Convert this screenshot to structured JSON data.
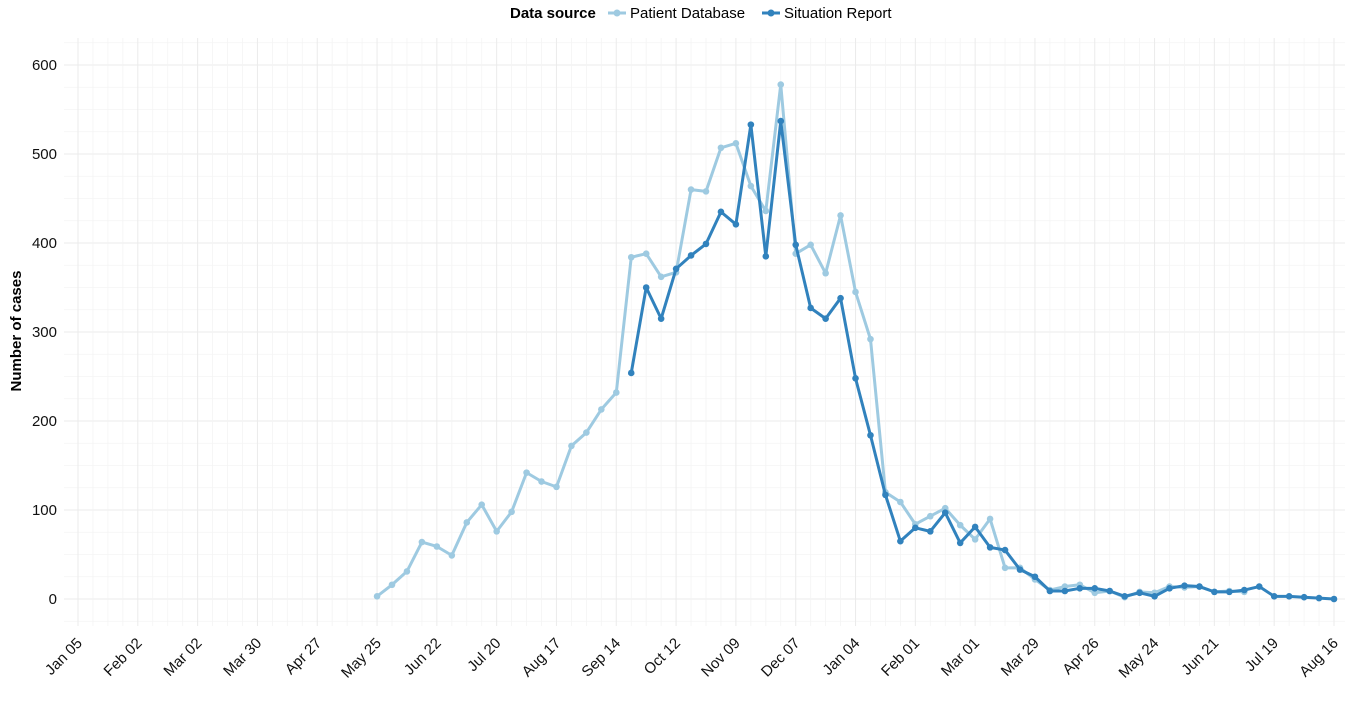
{
  "chart_data": {
    "type": "line",
    "title": "",
    "xlabel": "",
    "ylabel": "Number of cases",
    "legend": {
      "title": "Data source",
      "position": "top-center"
    },
    "grid": true,
    "ylim": [
      -30,
      630
    ],
    "yticks": [
      0,
      100,
      200,
      300,
      400,
      500,
      600
    ],
    "xlim": [
      "2014-01-05",
      "2015-08-16"
    ],
    "xticks": [
      {
        "date": "2014-01-05",
        "label": "Jan 05"
      },
      {
        "date": "2014-02-02",
        "label": "Feb 02"
      },
      {
        "date": "2014-03-02",
        "label": "Mar 02"
      },
      {
        "date": "2014-03-30",
        "label": "Mar 30"
      },
      {
        "date": "2014-04-27",
        "label": "Apr 27"
      },
      {
        "date": "2014-05-25",
        "label": "May 25"
      },
      {
        "date": "2014-06-22",
        "label": "Jun 22"
      },
      {
        "date": "2014-07-20",
        "label": "Jul 20"
      },
      {
        "date": "2014-08-17",
        "label": "Aug 17"
      },
      {
        "date": "2014-09-14",
        "label": "Sep 14"
      },
      {
        "date": "2014-10-12",
        "label": "Oct 12"
      },
      {
        "date": "2014-11-09",
        "label": "Nov 09"
      },
      {
        "date": "2014-12-07",
        "label": "Dec 07"
      },
      {
        "date": "2015-01-04",
        "label": "Jan 04"
      },
      {
        "date": "2015-02-01",
        "label": "Feb 01"
      },
      {
        "date": "2015-03-01",
        "label": "Mar 01"
      },
      {
        "date": "2015-03-29",
        "label": "Mar 29"
      },
      {
        "date": "2015-04-26",
        "label": "Apr 26"
      },
      {
        "date": "2015-05-24",
        "label": "May 24"
      },
      {
        "date": "2015-06-21",
        "label": "Jun 21"
      },
      {
        "date": "2015-07-19",
        "label": "Jul 19"
      },
      {
        "date": "2015-08-16",
        "label": "Aug 16"
      }
    ],
    "series": [
      {
        "name": "Patient Database",
        "color": "#9ecae1",
        "points": [
          [
            "2014-05-25",
            3
          ],
          [
            "2014-06-01",
            16
          ],
          [
            "2014-06-08",
            31
          ],
          [
            "2014-06-15",
            64
          ],
          [
            "2014-06-22",
            59
          ],
          [
            "2014-06-29",
            49
          ],
          [
            "2014-07-06",
            86
          ],
          [
            "2014-07-13",
            106
          ],
          [
            "2014-07-20",
            76
          ],
          [
            "2014-07-27",
            98
          ],
          [
            "2014-08-03",
            142
          ],
          [
            "2014-08-10",
            132
          ],
          [
            "2014-08-17",
            126
          ],
          [
            "2014-08-24",
            172
          ],
          [
            "2014-08-31",
            187
          ],
          [
            "2014-09-07",
            213
          ],
          [
            "2014-09-14",
            232
          ],
          [
            "2014-09-21",
            384
          ],
          [
            "2014-09-28",
            388
          ],
          [
            "2014-10-05",
            362
          ],
          [
            "2014-10-12",
            367
          ],
          [
            "2014-10-19",
            460
          ],
          [
            "2014-10-26",
            458
          ],
          [
            "2014-11-02",
            507
          ],
          [
            "2014-11-09",
            512
          ],
          [
            "2014-11-16",
            464
          ],
          [
            "2014-11-23",
            436
          ],
          [
            "2014-11-30",
            578
          ],
          [
            "2014-12-07",
            388
          ],
          [
            "2014-12-14",
            398
          ],
          [
            "2014-12-21",
            366
          ],
          [
            "2014-12-28",
            431
          ],
          [
            "2015-01-04",
            345
          ],
          [
            "2015-01-11",
            292
          ],
          [
            "2015-01-18",
            120
          ],
          [
            "2015-01-25",
            109
          ],
          [
            "2015-02-01",
            84
          ],
          [
            "2015-02-08",
            93
          ],
          [
            "2015-02-15",
            102
          ],
          [
            "2015-02-22",
            83
          ],
          [
            "2015-03-01",
            67
          ],
          [
            "2015-03-08",
            90
          ],
          [
            "2015-03-15",
            35
          ],
          [
            "2015-03-22",
            35
          ],
          [
            "2015-03-29",
            22
          ],
          [
            "2015-04-05",
            10
          ],
          [
            "2015-04-12",
            14
          ],
          [
            "2015-04-19",
            16
          ],
          [
            "2015-04-26",
            7
          ],
          [
            "2015-05-03",
            9
          ],
          [
            "2015-05-10",
            2
          ],
          [
            "2015-05-17",
            8
          ],
          [
            "2015-05-24",
            7
          ],
          [
            "2015-05-31",
            14
          ],
          [
            "2015-06-07",
            13
          ],
          [
            "2015-06-14",
            14
          ],
          [
            "2015-06-21",
            8
          ],
          [
            "2015-06-28",
            9
          ],
          [
            "2015-07-05",
            8
          ]
        ]
      },
      {
        "name": "Situation Report",
        "color": "#3182bd",
        "points": [
          [
            "2014-09-21",
            254
          ],
          [
            "2014-09-28",
            350
          ],
          [
            "2014-10-05",
            315
          ],
          [
            "2014-10-12",
            371
          ],
          [
            "2014-10-19",
            386
          ],
          [
            "2014-10-26",
            399
          ],
          [
            "2014-11-02",
            435
          ],
          [
            "2014-11-09",
            421
          ],
          [
            "2014-11-16",
            533
          ],
          [
            "2014-11-23",
            385
          ],
          [
            "2014-11-30",
            537
          ],
          [
            "2014-12-07",
            398
          ],
          [
            "2014-12-14",
            327
          ],
          [
            "2014-12-21",
            315
          ],
          [
            "2014-12-28",
            338
          ],
          [
            "2015-01-04",
            248
          ],
          [
            "2015-01-11",
            184
          ],
          [
            "2015-01-18",
            117
          ],
          [
            "2015-01-25",
            65
          ],
          [
            "2015-02-01",
            80
          ],
          [
            "2015-02-08",
            76
          ],
          [
            "2015-02-15",
            97
          ],
          [
            "2015-02-22",
            63
          ],
          [
            "2015-03-01",
            81
          ],
          [
            "2015-03-08",
            58
          ],
          [
            "2015-03-15",
            55
          ],
          [
            "2015-03-22",
            33
          ],
          [
            "2015-03-29",
            25
          ],
          [
            "2015-04-05",
            9
          ],
          [
            "2015-04-12",
            9
          ],
          [
            "2015-04-19",
            12
          ],
          [
            "2015-04-26",
            12
          ],
          [
            "2015-05-03",
            9
          ],
          [
            "2015-05-10",
            3
          ],
          [
            "2015-05-17",
            7
          ],
          [
            "2015-05-24",
            3
          ],
          [
            "2015-05-31",
            12
          ],
          [
            "2015-06-07",
            15
          ],
          [
            "2015-06-14",
            14
          ],
          [
            "2015-06-21",
            8
          ],
          [
            "2015-06-28",
            8
          ],
          [
            "2015-07-05",
            10
          ],
          [
            "2015-07-12",
            14
          ],
          [
            "2015-07-19",
            3
          ],
          [
            "2015-07-26",
            3
          ],
          [
            "2015-08-02",
            2
          ],
          [
            "2015-08-09",
            1
          ],
          [
            "2015-08-16",
            0
          ]
        ]
      }
    ]
  }
}
